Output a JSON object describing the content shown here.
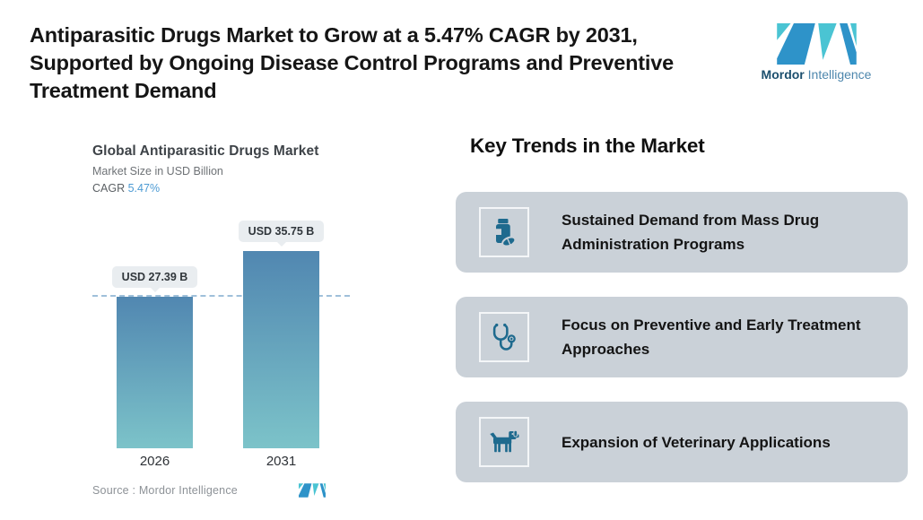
{
  "header": {
    "title": "Antiparasitic Drugs Market to Grow at a 5.47% CAGR by 2031, Supported by Ongoing Disease Control Programs and Preventive Treatment Demand"
  },
  "brand": {
    "bold": "Mordor",
    "light": "Intelligence"
  },
  "chart": {
    "title": "Global Antiparasitic Drugs Market",
    "subtitle": "Market Size in USD Billion",
    "cagr_label": "CAGR",
    "cagr_value": "5.47%",
    "source_label": "Source :  Mordor Intelligence"
  },
  "chart_data": {
    "type": "bar",
    "categories": [
      "2026",
      "2031"
    ],
    "values": [
      27.39,
      35.75
    ],
    "value_labels": [
      "USD 27.39 B",
      "USD 35.75 B"
    ],
    "title": "Global Antiparasitic Drugs Market",
    "xlabel": "",
    "ylabel": "Market Size in USD Billion",
    "ylim": [
      0,
      38
    ],
    "grid": false,
    "legend": false,
    "cagr": "5.47%",
    "reference_line": {
      "style": "dashed",
      "at_value": 27.39
    }
  },
  "trends": {
    "heading": "Key Trends in the Market",
    "items": [
      {
        "icon": "pill-bottle-icon",
        "text": "Sustained Demand from Mass Drug Administration Programs"
      },
      {
        "icon": "stethoscope-icon",
        "text": "Focus on Preventive and Early Treatment Approaches"
      },
      {
        "icon": "dog-icon",
        "text": "Expansion of Veterinary Applications"
      }
    ]
  },
  "colors": {
    "bar_gradient_top": "#5187B1",
    "bar_gradient_bottom": "#7CC3C9",
    "reference_line": "#9FC0DA",
    "value_pill_bg": "#E9EDF0",
    "cagr_value": "#4D9BD4",
    "card_background": "#CAD1D8",
    "trend_icon": "#1E6A8E",
    "brand_teal": "#4AC4D3",
    "brand_blue": "#2E93C9"
  }
}
